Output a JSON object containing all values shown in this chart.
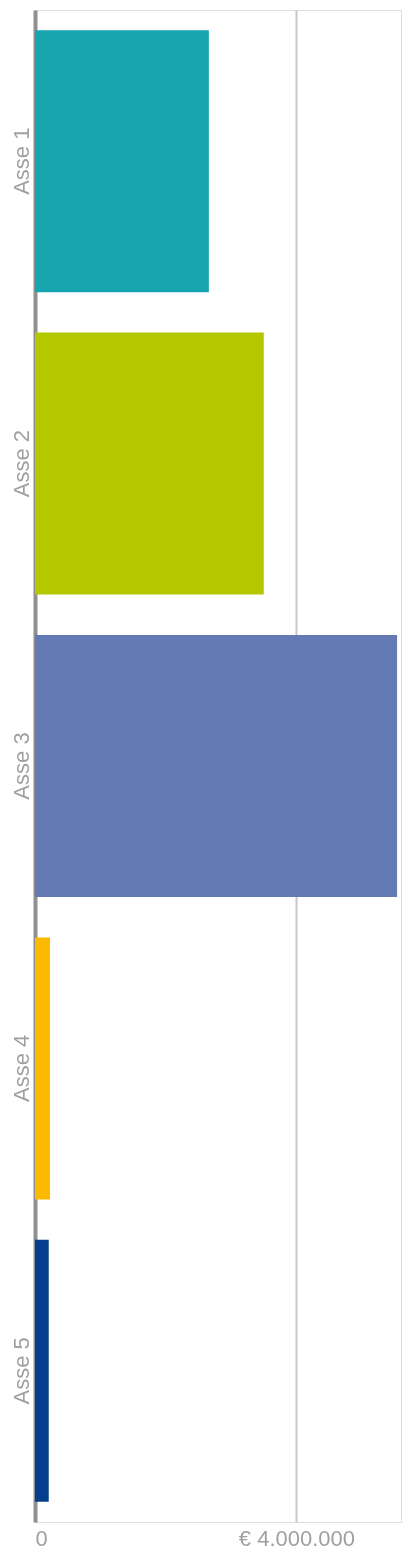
{
  "chart_data": {
    "type": "bar",
    "orientation": "horizontal",
    "categories": [
      "Asse 1",
      "Asse 2",
      "Asse 3",
      "Asse 4",
      "Asse 5"
    ],
    "values": [
      2660000,
      3500000,
      5540000,
      230000,
      210000
    ],
    "colors": [
      "#17a5b0",
      "#b4c800",
      "#637ab5",
      "#fbb900",
      "#053e8c"
    ],
    "xlim": [
      0,
      5600000
    ],
    "xticks": [
      0,
      {
        "value": 4000000,
        "label": "€ 4.000.000"
      }
    ],
    "grid": "x"
  }
}
